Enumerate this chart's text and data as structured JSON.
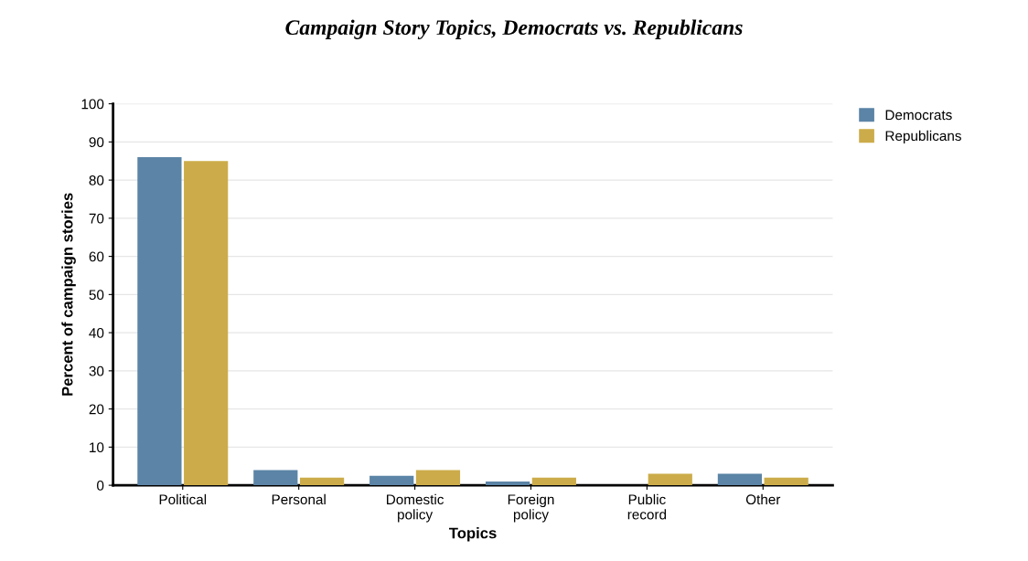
{
  "chart_data": {
    "type": "bar",
    "title": "Campaign Story Topics, Democrats vs. Republicans",
    "xlabel": "Topics",
    "ylabel": "Percent of campaign stories",
    "categories": [
      "Political",
      "Personal",
      "Domestic\npolicy",
      "Foreign\npolicy",
      "Public\nrecord",
      "Other"
    ],
    "series": [
      {
        "name": "Democrats",
        "color": "#5b84a6",
        "values": [
          86,
          4,
          2.5,
          1,
          0,
          3
        ]
      },
      {
        "name": "Republicans",
        "color": "#ccac4a",
        "values": [
          85,
          2,
          4,
          2,
          3,
          2
        ]
      }
    ],
    "ylim": [
      0,
      100
    ],
    "yticks": [
      0,
      10,
      20,
      30,
      40,
      50,
      60,
      70,
      80,
      90,
      100
    ],
    "grid": "y",
    "legend": "top right"
  }
}
